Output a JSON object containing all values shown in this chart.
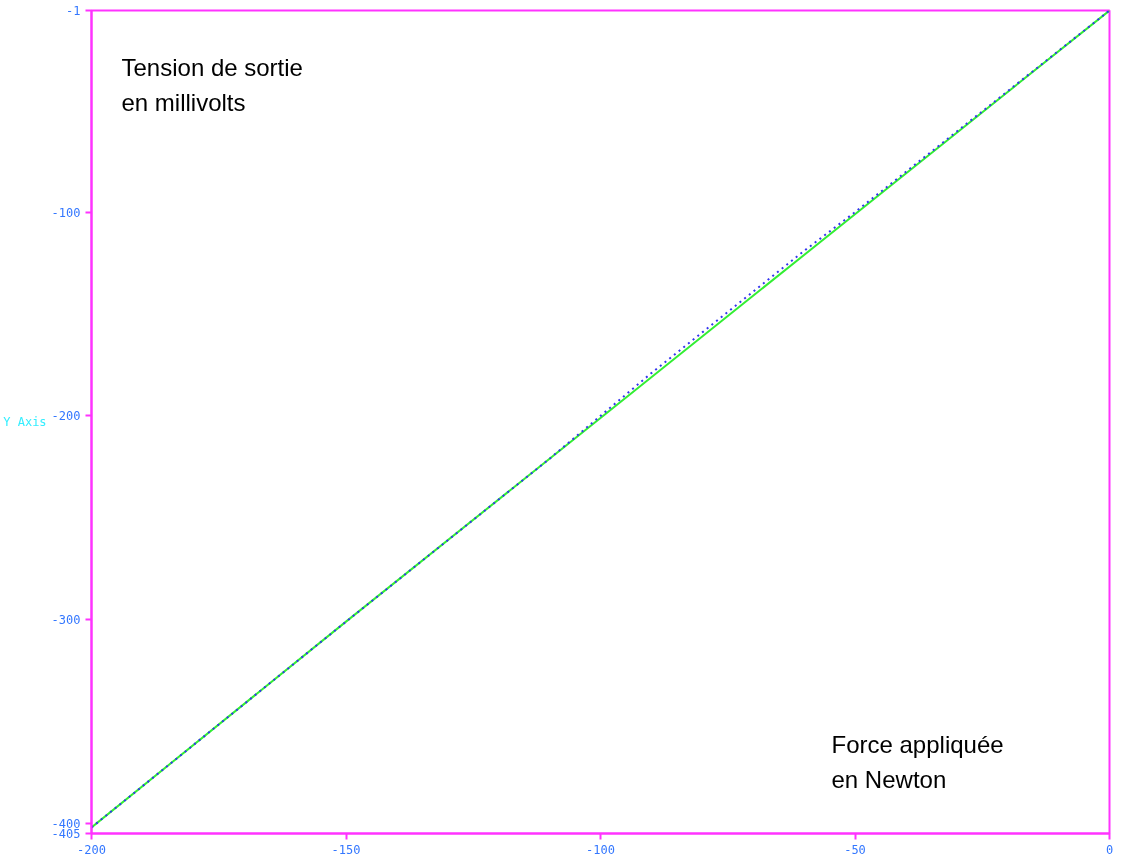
{
  "chart_data": {
    "type": "line",
    "ylabel": "Y Axis",
    "annotations": [
      "Tension de sortie en millivolts",
      "Force appliquée en Newton"
    ],
    "series": [
      {
        "color": "#33ee33",
        "line_style": "solid",
        "x": [
          -200,
          -150,
          -100,
          -50,
          0
        ],
        "values": [
          -402,
          -301,
          -201,
          -101,
          -1
        ]
      },
      {
        "color": "#3333ee",
        "line_style": "dotted",
        "x": [
          -200,
          -150,
          -110,
          -100,
          -90,
          -80,
          -70,
          -60,
          -50,
          0
        ],
        "values": [
          -402,
          -301,
          -221,
          -200,
          -179,
          -159,
          -139,
          -119,
          -100,
          -1
        ]
      }
    ],
    "xlim": [
      -200,
      0
    ],
    "xticks": [
      -200,
      -150,
      -100,
      -50,
      0
    ],
    "ylim": [
      -405,
      -1
    ],
    "yticks": [
      -405,
      -400,
      -300,
      -200,
      -100,
      -1
    ],
    "grid": false,
    "marker": "none"
  }
}
